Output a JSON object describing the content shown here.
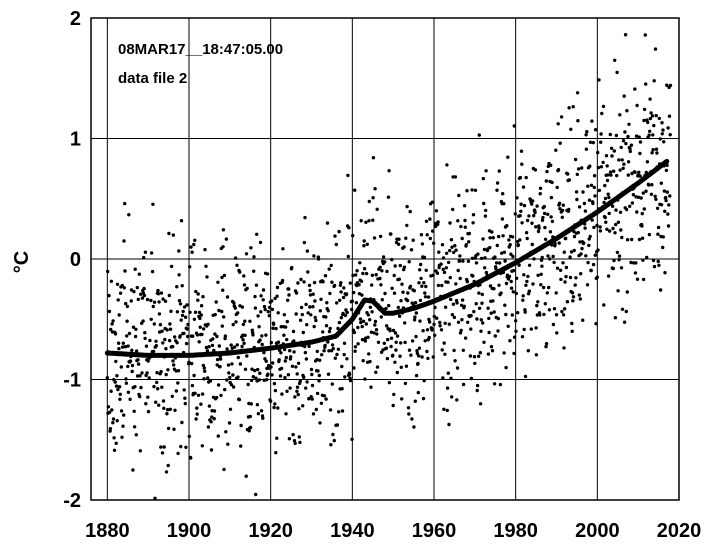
{
  "chart_data": {
    "type": "scatter",
    "title": "",
    "xlabel": "",
    "ylabel": "°C",
    "xlim": [
      1876,
      2020
    ],
    "ylim": [
      -2,
      2
    ],
    "x_ticks": [
      1880,
      1900,
      1920,
      1940,
      1960,
      1980,
      2000,
      2020
    ],
    "y_ticks": [
      -2,
      -1,
      0,
      1,
      2
    ],
    "grid": true,
    "annotations": [
      "08MAR17__18:47:05.00",
      "data file 2"
    ],
    "colors": {
      "points": "#000000",
      "trend": "#000000",
      "grid": "#000000",
      "background": "#ffffff"
    },
    "series": [
      {
        "type": "scatter",
        "points_per_year": 12,
        "x_range": [
          1880,
          2017
        ],
        "y_range": [
          -2,
          2
        ],
        "description_of_spread": "monthly anomalies scattered roughly +/-1 around the trend"
      },
      {
        "type": "line",
        "x": [
          1880,
          1890,
          1900,
          1910,
          1920,
          1930,
          1936,
          1940,
          1943,
          1945,
          1948,
          1950,
          1955,
          1960,
          1970,
          1980,
          1990,
          2000,
          2010,
          2017
        ],
        "y": [
          -0.78,
          -0.8,
          -0.8,
          -0.78,
          -0.74,
          -0.69,
          -0.64,
          -0.5,
          -0.34,
          -0.35,
          -0.45,
          -0.45,
          -0.41,
          -0.35,
          -0.21,
          -0.03,
          0.17,
          0.39,
          0.63,
          0.81
        ]
      }
    ]
  }
}
